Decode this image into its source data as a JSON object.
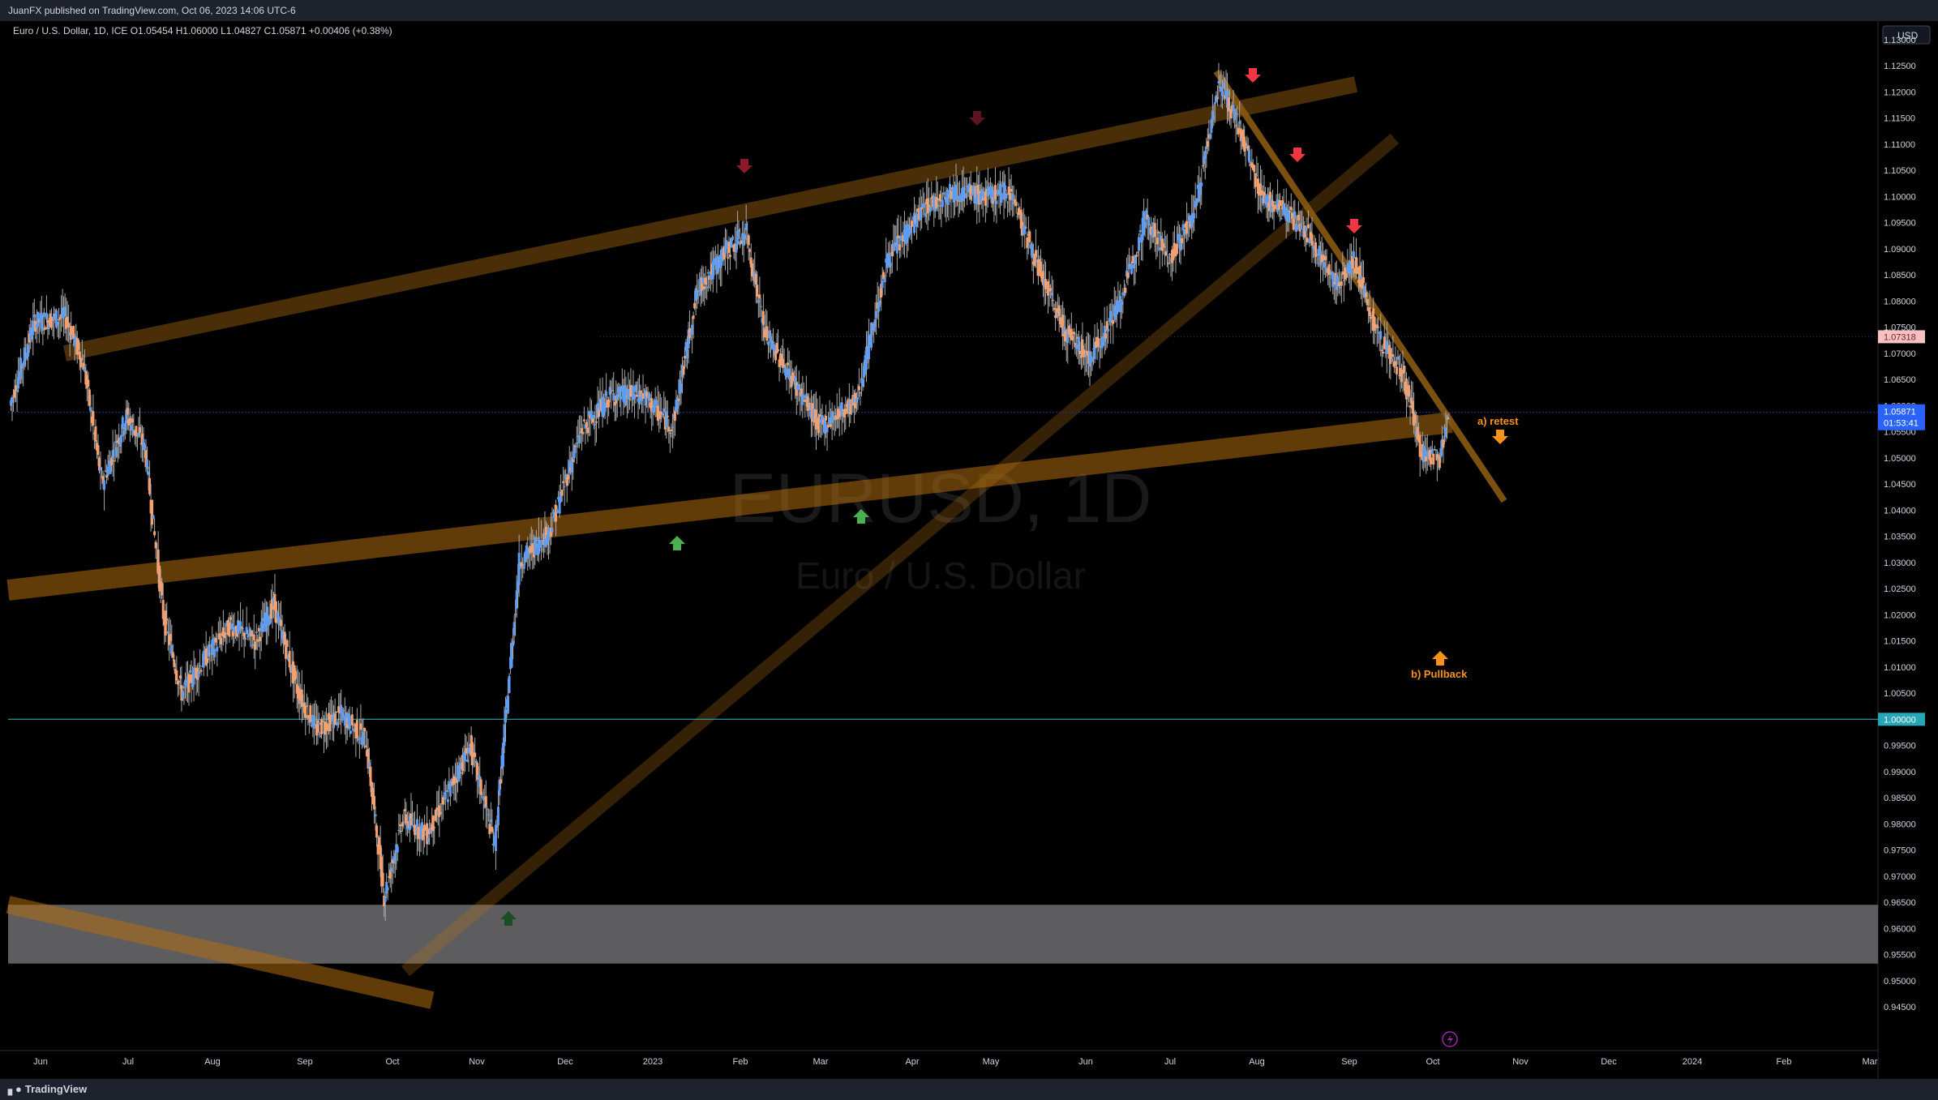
{
  "header": {
    "published": "JuanFX published on TradingView.com, Oct 06, 2023 14:06 UTC-6"
  },
  "footer": {
    "brand": "TradingView"
  },
  "chart_data": {
    "type": "candlestick",
    "symbol_line": "Euro / U.S. Dollar, 1D, ICE  O1.05454  H1.06000  L1.04827  C1.05871  +0.00406 (+0.38%)",
    "watermark_symbol": "EURUSD, 1D",
    "watermark_name": "Euro / U.S. Dollar",
    "currency_button": "USD",
    "y_ticks": [
      "1.13000",
      "1.12500",
      "1.12000",
      "1.11500",
      "1.11000",
      "1.10500",
      "1.10000",
      "1.09500",
      "1.09000",
      "1.08500",
      "1.08000",
      "1.07500",
      "1.07000",
      "1.06500",
      "1.06000",
      "1.05500",
      "1.05000",
      "1.04500",
      "1.04000",
      "1.03500",
      "1.03000",
      "1.02500",
      "1.02000",
      "1.01500",
      "1.01000",
      "1.00500",
      "1.00000",
      "0.99500",
      "0.99000",
      "0.98500",
      "0.98000",
      "0.97500",
      "0.97000",
      "0.96500",
      "0.96000",
      "0.95500",
      "0.95000",
      "0.94500"
    ],
    "x_ticks": [
      "Jun",
      "Jul",
      "Aug",
      "Sep",
      "Oct",
      "Nov",
      "Dec",
      "2023",
      "Feb",
      "Mar",
      "Apr",
      "May",
      "Jun",
      "Jul",
      "Aug",
      "Sep",
      "Oct",
      "Nov",
      "Dec",
      "2024",
      "Feb",
      "Mar"
    ],
    "price_labels": {
      "last": "1.05871",
      "countdown": "01:53:41",
      "marked": "1.07318",
      "parity": "1.00000"
    },
    "horizontal_lines": [
      1.07318,
      1.0,
      1.05871
    ],
    "gray_zone": [
      0.95326,
      0.96451
    ],
    "bull_color": "#5b9cf6",
    "bear_color": "#f7a06e",
    "channel_color": "#7a4f10",
    "annotations": {
      "retest": "a) retest",
      "pullback": "b) Pullback"
    },
    "series": [
      {
        "name": "EURUSD",
        "close_path": [
          [
            0,
            1.06
          ],
          [
            20,
            1.076
          ],
          [
            45,
            1.077
          ],
          [
            60,
            1.068
          ],
          [
            75,
            1.045
          ],
          [
            95,
            1.058
          ],
          [
            110,
            1.052
          ],
          [
            125,
            1.02
          ],
          [
            140,
            1.005
          ],
          [
            160,
            1.012
          ],
          [
            180,
            1.018
          ],
          [
            200,
            1.015
          ],
          [
            215,
            1.022
          ],
          [
            235,
            1.005
          ],
          [
            250,
            0.998
          ],
          [
            270,
            1.001
          ],
          [
            290,
            0.996
          ],
          [
            305,
            0.966
          ],
          [
            320,
            0.981
          ],
          [
            340,
            0.978
          ],
          [
            355,
            0.985
          ],
          [
            375,
            0.995
          ],
          [
            395,
            0.976
          ],
          [
            415,
            1.03
          ],
          [
            440,
            1.036
          ],
          [
            465,
            1.055
          ],
          [
            490,
            1.062
          ],
          [
            515,
            1.062
          ],
          [
            540,
            1.056
          ],
          [
            560,
            1.082
          ],
          [
            585,
            1.09
          ],
          [
            600,
            1.093
          ],
          [
            615,
            1.074
          ],
          [
            635,
            1.066
          ],
          [
            660,
            1.056
          ],
          [
            690,
            1.061
          ],
          [
            715,
            1.088
          ],
          [
            745,
            1.098
          ],
          [
            770,
            1.101
          ],
          [
            795,
            1.1
          ],
          [
            815,
            1.101
          ],
          [
            840,
            1.085
          ],
          [
            860,
            1.074
          ],
          [
            880,
            1.069
          ],
          [
            905,
            1.08
          ],
          [
            925,
            1.096
          ],
          [
            945,
            1.088
          ],
          [
            965,
            1.097
          ],
          [
            985,
            1.122
          ],
          [
            1000,
            1.114
          ],
          [
            1020,
            1.1
          ],
          [
            1040,
            1.097
          ],
          [
            1060,
            1.092
          ],
          [
            1080,
            1.083
          ],
          [
            1095,
            1.088
          ],
          [
            1115,
            1.073
          ],
          [
            1135,
            1.066
          ],
          [
            1150,
            1.051
          ],
          [
            1165,
            1.05
          ],
          [
            1172,
            1.0587
          ]
        ]
      }
    ]
  }
}
